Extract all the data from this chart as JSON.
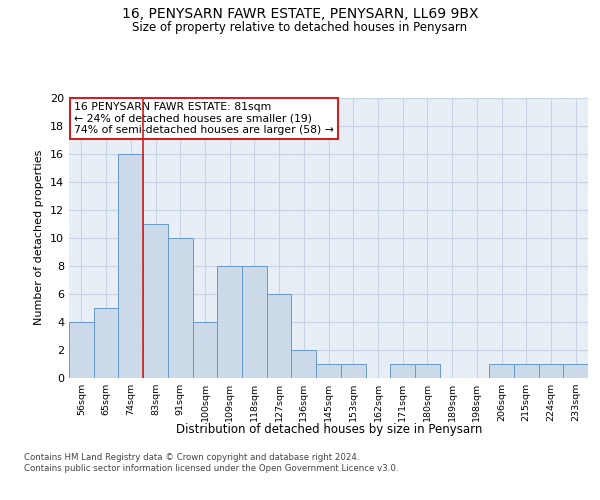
{
  "title": "16, PENYSARN FAWR ESTATE, PENYSARN, LL69 9BX",
  "subtitle": "Size of property relative to detached houses in Penysarn",
  "xlabel": "Distribution of detached houses by size in Penysarn",
  "ylabel": "Number of detached properties",
  "categories": [
    "56sqm",
    "65sqm",
    "74sqm",
    "83sqm",
    "91sqm",
    "100sqm",
    "109sqm",
    "118sqm",
    "127sqm",
    "136sqm",
    "145sqm",
    "153sqm",
    "162sqm",
    "171sqm",
    "180sqm",
    "189sqm",
    "198sqm",
    "206sqm",
    "215sqm",
    "224sqm",
    "233sqm"
  ],
  "values": [
    4,
    5,
    16,
    11,
    10,
    4,
    8,
    8,
    6,
    2,
    1,
    1,
    0,
    1,
    1,
    0,
    0,
    1,
    1,
    1,
    1
  ],
  "bar_color": "#ccd9e8",
  "bar_edge_color": "#6699cc",
  "grid_color": "#c8d4e4",
  "background_color": "#e8eef6",
  "vline_color": "#cc2222",
  "annotation_text": "16 PENYSARN FAWR ESTATE: 81sqm\n← 24% of detached houses are smaller (19)\n74% of semi-detached houses are larger (58) →",
  "annotation_box_facecolor": "#ffffff",
  "annotation_box_edgecolor": "#cc2222",
  "ylim": [
    0,
    20
  ],
  "yticks": [
    0,
    2,
    4,
    6,
    8,
    10,
    12,
    14,
    16,
    18,
    20
  ],
  "footer_line1": "Contains HM Land Registry data © Crown copyright and database right 2024.",
  "footer_line2": "Contains public sector information licensed under the Open Government Licence v3.0."
}
